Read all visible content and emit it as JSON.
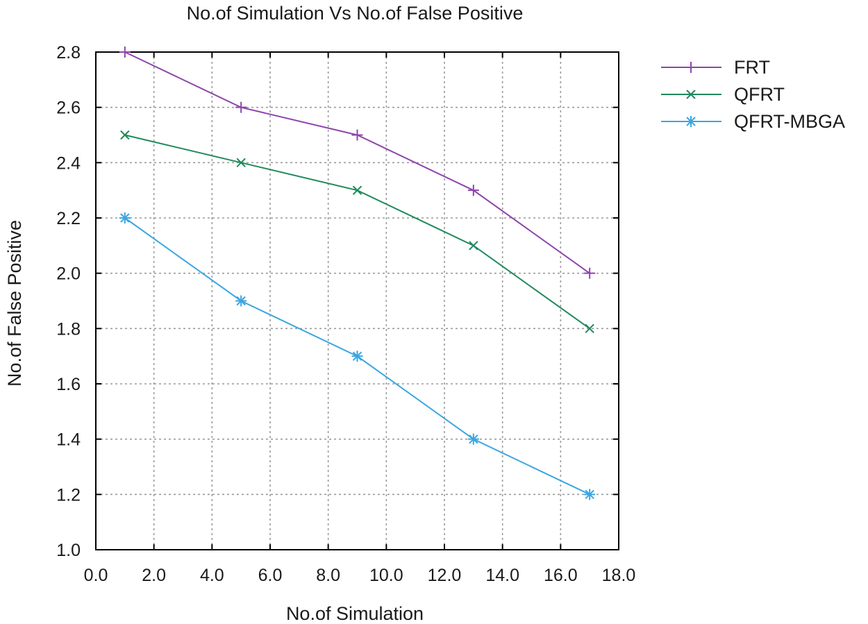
{
  "chart_data": {
    "type": "line",
    "title": "No.of Simulation Vs No.of False Positive",
    "xlabel": "No.of Simulation",
    "ylabel": "No.of False Positive",
    "xlim": [
      0,
      18
    ],
    "ylim": [
      1.0,
      2.8
    ],
    "xticks": [
      0,
      2,
      4,
      6,
      8,
      10,
      12,
      14,
      16,
      18
    ],
    "xtick_labels": [
      "0.0",
      "2.0",
      "4.0",
      "6.0",
      "8.0",
      "10.0",
      "12.0",
      "14.0",
      "16.0",
      "18.0"
    ],
    "yticks": [
      1.0,
      1.2,
      1.4,
      1.6,
      1.8,
      2.0,
      2.2,
      2.4,
      2.6,
      2.8
    ],
    "ytick_labels": [
      "1.0",
      "1.2",
      "1.4",
      "1.6",
      "1.8",
      "2.0",
      "2.2",
      "2.4",
      "2.6",
      "2.8"
    ],
    "grid": true,
    "legend_position": "outside-top-right",
    "x": [
      1,
      5,
      9,
      13,
      17
    ],
    "series": [
      {
        "name": "FRT",
        "values": [
          2.8,
          2.6,
          2.5,
          2.3,
          2.0
        ],
        "color": "#8e44ad",
        "marker": "plus"
      },
      {
        "name": "QFRT",
        "values": [
          2.5,
          2.4,
          2.3,
          2.1,
          1.8
        ],
        "color": "#1e8a5a",
        "marker": "cross"
      },
      {
        "name": "QFRT-MBGA",
        "values": [
          2.2,
          1.9,
          1.7,
          1.4,
          1.2
        ],
        "color": "#3aa6e0",
        "marker": "star"
      }
    ]
  }
}
